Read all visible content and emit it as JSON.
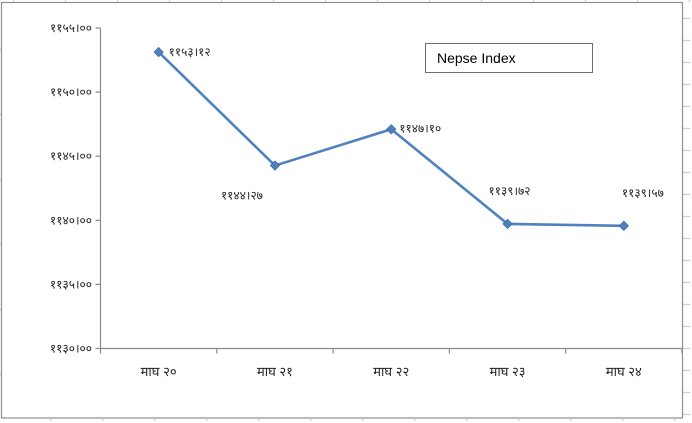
{
  "window": {
    "background": "#ffffff",
    "border_color": "#8e8e96",
    "gridline_stub_color": "#ccd3de"
  },
  "legend": {
    "label": "Nepse Index"
  },
  "chart_data": {
    "type": "line",
    "title": "Nepse Index",
    "series_name": "Nepse Index",
    "categories": [
      "माघ २०",
      "माघ २१",
      "माघ २२",
      "माघ २३",
      "माघ २४"
    ],
    "values": [
      1153.12,
      1144.27,
      1147.1,
      1139.72,
      1139.57
    ],
    "value_labels": [
      "११५३।१२",
      "११४४।२७",
      "११४७।१०",
      "११३९।७२",
      "११३९।५७"
    ],
    "ylim": [
      1130,
      1155
    ],
    "ytick_step": 5,
    "yticks": [
      {
        "value": 1155,
        "label": "११५५।००"
      },
      {
        "value": 1150,
        "label": "११५०।००"
      },
      {
        "value": 1145,
        "label": "११४५।००"
      },
      {
        "value": 1140,
        "label": "११४०।००"
      },
      {
        "value": 1135,
        "label": "११३५।००"
      },
      {
        "value": 1130,
        "label": "११३०।००"
      }
    ],
    "grid": false,
    "legend_position": "top-right",
    "line_color": "#4f81bd",
    "marker": "diamond",
    "marker_edge_color": "#3d6ca5",
    "axis_color": "#8a8a8a",
    "xlabel": "",
    "ylabel": ""
  }
}
